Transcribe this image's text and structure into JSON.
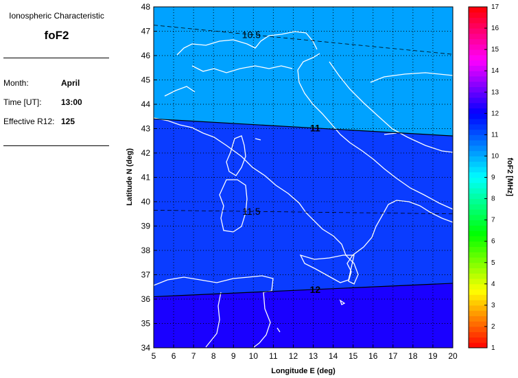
{
  "info": {
    "subtitle": "Ionospheric Characteristic",
    "title": "foF2",
    "month_label": "Month:",
    "month_value": "April",
    "time_label": "Time [UT]:",
    "time_value": "13:00",
    "r12_label": "Effective R12:",
    "r12_value": "125"
  },
  "chart_data": {
    "type": "contour-map",
    "xlabel": "Longitude E (deg)",
    "ylabel": "Latitude N (deg)",
    "xlim": [
      5,
      20
    ],
    "ylim": [
      34,
      48
    ],
    "xticks": [
      "5",
      "6",
      "7",
      "8",
      "9",
      "10",
      "11",
      "12",
      "13",
      "14",
      "15",
      "16",
      "17",
      "18",
      "19",
      "20"
    ],
    "yticks": [
      "34",
      "35",
      "36",
      "37",
      "38",
      "39",
      "40",
      "41",
      "42",
      "43",
      "44",
      "45",
      "46",
      "47",
      "48"
    ],
    "grid": true,
    "contours": [
      {
        "level": "10.5",
        "style": "dashed",
        "lat_at_lon5": 47.25,
        "lat_at_lon20": 46.05
      },
      {
        "level": "11",
        "style": "solid",
        "lat_at_lon5": 43.4,
        "lat_at_lon20": 42.7
      },
      {
        "level": "11.5",
        "style": "dashed",
        "lat_at_lon5": 39.65,
        "lat_at_lon20": 39.5
      },
      {
        "level": "12",
        "style": "solid",
        "lat_at_lon5": 36.1,
        "lat_at_lon20": 36.65
      }
    ],
    "fill_colors": {
      "below_11": "#00a2ff",
      "11_to_12": "#0a3cff",
      "above_12": "#1a00ff"
    },
    "colorbar": {
      "label": "foF2 [MHz]",
      "range": [
        1,
        17
      ],
      "ticks": [
        "1",
        "2",
        "3",
        "4",
        "5",
        "6",
        "7",
        "8",
        "9",
        "10",
        "11",
        "12",
        "13",
        "14",
        "15",
        "16",
        "17"
      ]
    }
  }
}
